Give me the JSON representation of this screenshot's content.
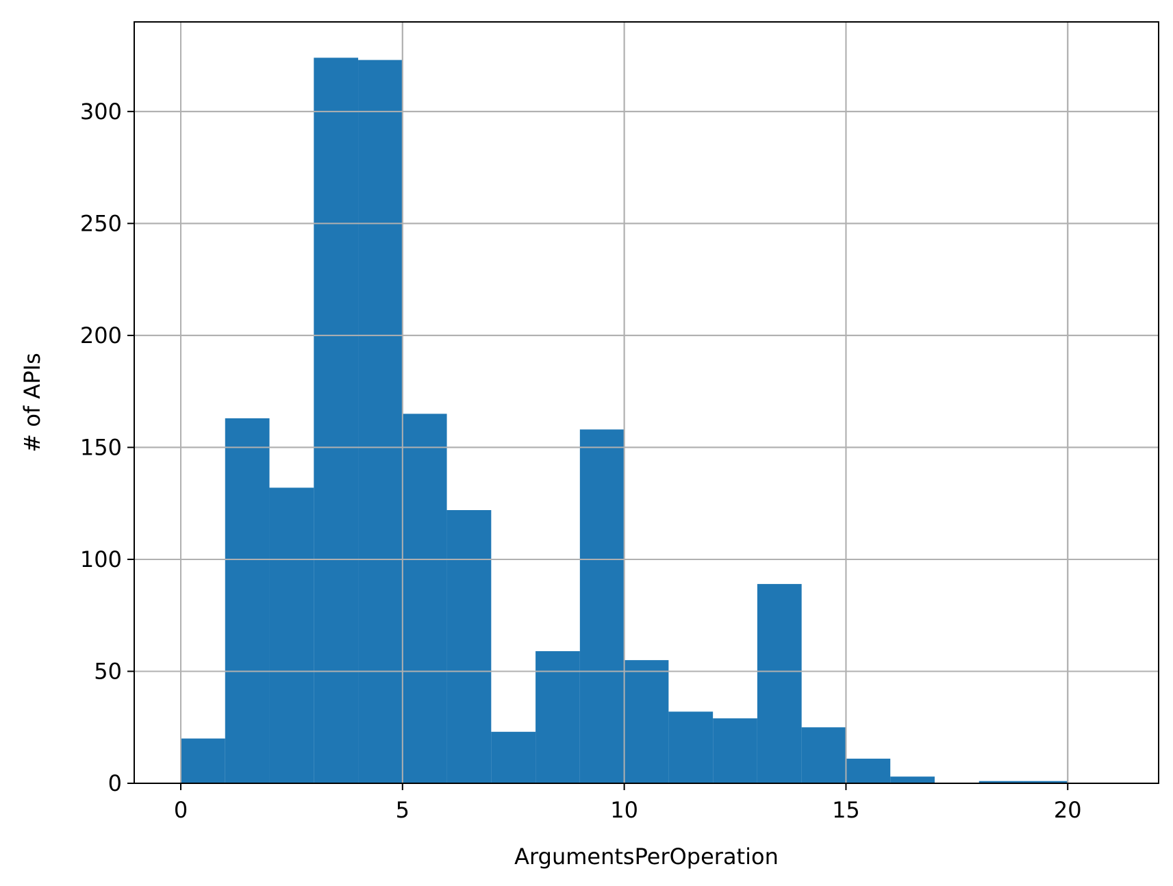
{
  "chart_data": {
    "type": "bar",
    "subtype": "histogram",
    "title": "",
    "xlabel": "ArgumentsPerOperation",
    "ylabel": "# of APIs",
    "bin_edges": [
      0,
      1,
      2,
      3,
      4,
      5,
      6,
      7,
      8,
      9,
      10,
      11,
      12,
      13,
      14,
      15,
      16,
      17,
      18,
      19,
      20,
      21
    ],
    "values": [
      20,
      163,
      132,
      324,
      323,
      165,
      122,
      23,
      59,
      158,
      55,
      32,
      29,
      89,
      25,
      11,
      3,
      0,
      1,
      1,
      0
    ],
    "xlim": [
      -1.05,
      22.05
    ],
    "ylim": [
      0,
      340
    ],
    "xticks": [
      0,
      5,
      10,
      15,
      20
    ],
    "xtick_labels": [
      "0",
      "5",
      "10",
      "15",
      "20"
    ],
    "yticks": [
      0,
      50,
      100,
      150,
      200,
      250,
      300
    ],
    "ytick_labels": [
      "0",
      "50",
      "100",
      "150",
      "200",
      "250",
      "300"
    ],
    "grid": true,
    "colors": {
      "bar": "#1f77b4",
      "grid": "#b0b0b0",
      "axis": "#000000"
    }
  }
}
